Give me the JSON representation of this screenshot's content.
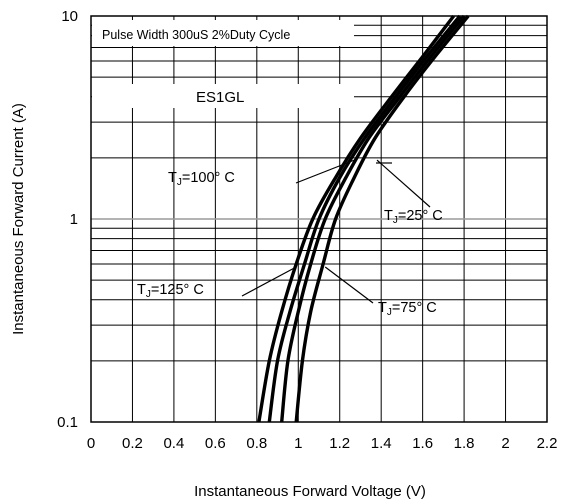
{
  "chart_data": {
    "type": "line",
    "title": "",
    "xlabel": "Instantaneous Forward Voltage (V)",
    "ylabel": "Instantaneous Forward Current (A)",
    "xlim": [
      0,
      2.2
    ],
    "ylim": [
      0.1,
      10
    ],
    "yscale": "log",
    "grid": true,
    "x_ticks": [
      "0",
      "0.2",
      "0.4",
      "0.6",
      "0.8",
      "1",
      "1.2",
      "1.4",
      "1.6",
      "1.8",
      "2",
      "2.2"
    ],
    "y_ticks": [
      "0.1",
      "1",
      "10"
    ],
    "annotations": {
      "test_condition": "Pulse Width 300uS 2%Duty Cycle",
      "part_number": "ES1GL"
    },
    "series": [
      {
        "name": "TJ=125° C",
        "label_parts": [
          "T",
          "J",
          "=125°  C"
        ],
        "x": [
          0.81,
          0.86,
          0.92,
          0.99,
          1.07,
          1.18,
          1.3,
          1.45,
          1.61,
          1.75
        ],
        "y": [
          0.1,
          0.2,
          0.35,
          0.6,
          1.0,
          1.6,
          2.5,
          4.0,
          6.5,
          10
        ]
      },
      {
        "name": "TJ=100° C",
        "label_parts": [
          "T",
          "J",
          "=100°  C"
        ],
        "x": [
          0.86,
          0.9,
          0.96,
          1.03,
          1.1,
          1.2,
          1.32,
          1.47,
          1.63,
          1.78
        ],
        "y": [
          0.1,
          0.2,
          0.35,
          0.6,
          1.0,
          1.6,
          2.5,
          4.0,
          6.5,
          10
        ]
      },
      {
        "name": "TJ=75° C",
        "label_parts": [
          "T",
          "J",
          "=75°  C"
        ],
        "x": [
          0.92,
          0.95,
          1.0,
          1.06,
          1.13,
          1.23,
          1.34,
          1.49,
          1.65,
          1.8
        ],
        "y": [
          0.1,
          0.2,
          0.35,
          0.6,
          1.0,
          1.6,
          2.5,
          4.0,
          6.5,
          10
        ]
      },
      {
        "name": "TJ=25° C",
        "label_parts": [
          "T",
          "J",
          "=25°  C"
        ],
        "x": [
          0.99,
          1.02,
          1.06,
          1.12,
          1.18,
          1.27,
          1.37,
          1.51,
          1.67,
          1.82
        ],
        "y": [
          0.1,
          0.2,
          0.35,
          0.6,
          1.0,
          1.6,
          2.5,
          4.0,
          6.5,
          10
        ]
      }
    ]
  }
}
